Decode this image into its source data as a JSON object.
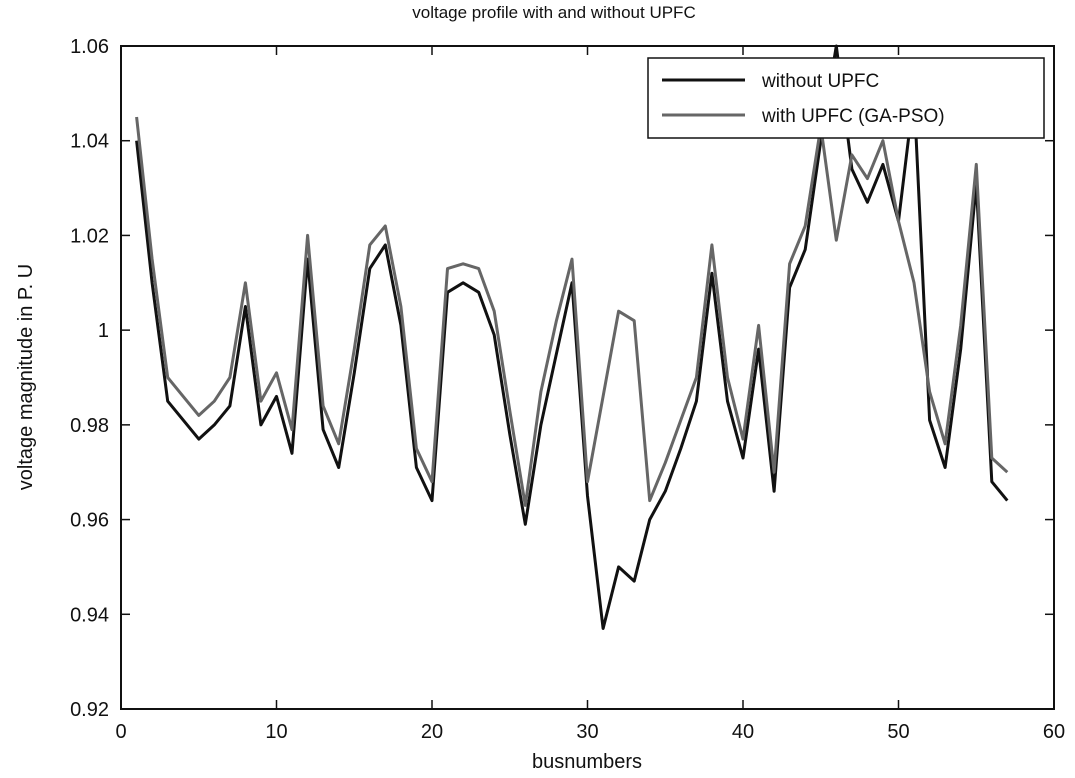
{
  "chart_data": {
    "type": "line",
    "title": "voltage profile with and without UPFC",
    "xlabel": "busnumbers",
    "ylabel": "voltage magnitude in P. U",
    "xlim": [
      0,
      60
    ],
    "ylim": [
      0.92,
      1.06
    ],
    "xticks": [
      0,
      10,
      20,
      30,
      40,
      50,
      60
    ],
    "xtick_labels": [
      "0",
      "10",
      "20",
      "30",
      "40",
      "50",
      "60"
    ],
    "yticks": [
      0.92,
      0.94,
      0.96,
      0.98,
      1.0,
      1.02,
      1.04,
      1.06
    ],
    "ytick_labels": [
      "0.92",
      "0.94",
      "0.96",
      "0.98",
      "1",
      "1.02",
      "1.04",
      "1.06"
    ],
    "grid": false,
    "legend_position": "top-right",
    "x": [
      1,
      2,
      3,
      4,
      5,
      6,
      7,
      8,
      9,
      10,
      11,
      12,
      13,
      14,
      15,
      16,
      17,
      18,
      19,
      20,
      21,
      22,
      23,
      24,
      25,
      26,
      27,
      28,
      29,
      30,
      31,
      32,
      33,
      34,
      35,
      36,
      37,
      38,
      39,
      40,
      41,
      42,
      43,
      44,
      45,
      46,
      47,
      48,
      49,
      50,
      51,
      52,
      53,
      54,
      55,
      56,
      57
    ],
    "series": [
      {
        "name": "without UPFC",
        "color": "#111111",
        "values": [
          1.04,
          1.01,
          0.985,
          0.981,
          0.977,
          0.98,
          0.984,
          1.005,
          0.98,
          0.986,
          0.974,
          1.015,
          0.979,
          0.971,
          0.991,
          1.013,
          1.018,
          1.001,
          0.971,
          0.964,
          1.008,
          1.01,
          1.008,
          0.999,
          0.978,
          0.959,
          0.98,
          0.995,
          1.01,
          0.965,
          0.937,
          0.95,
          0.947,
          0.96,
          0.966,
          0.975,
          0.985,
          1.012,
          0.985,
          0.973,
          0.996,
          0.966,
          1.009,
          1.017,
          1.04,
          1.06,
          1.034,
          1.027,
          1.035,
          1.023,
          1.05,
          0.981,
          0.971,
          0.996,
          1.031,
          0.968,
          0.964
        ]
      },
      {
        "name": "with UPFC (GA-PSO)",
        "color": "#666666",
        "values": [
          1.045,
          1.015,
          0.99,
          0.986,
          0.982,
          0.985,
          0.99,
          1.01,
          0.985,
          0.991,
          0.979,
          1.02,
          0.984,
          0.976,
          0.996,
          1.018,
          1.022,
          1.005,
          0.975,
          0.968,
          1.013,
          1.014,
          1.013,
          1.004,
          0.983,
          0.963,
          0.987,
          1.002,
          1.015,
          0.968,
          0.986,
          1.004,
          1.002,
          0.964,
          0.972,
          0.981,
          0.99,
          1.018,
          0.99,
          0.977,
          1.001,
          0.97,
          1.014,
          1.022,
          1.043,
          1.019,
          1.037,
          1.032,
          1.04,
          1.023,
          1.01,
          0.987,
          0.976,
          1.001,
          1.035,
          0.973,
          0.97
        ]
      }
    ]
  }
}
